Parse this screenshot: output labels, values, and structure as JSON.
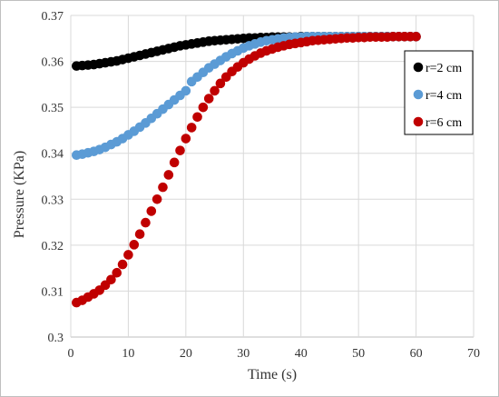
{
  "chart_data": {
    "type": "scatter",
    "xlabel": "Time (s)",
    "ylabel": "Pressure (KPa)",
    "xlim": [
      0,
      70
    ],
    "ylim": [
      0.3,
      0.37
    ],
    "x_ticks": [
      "0",
      "10",
      "20",
      "30",
      "40",
      "50",
      "60",
      "70"
    ],
    "y_ticks": [
      "0.3",
      "0.31",
      "0.32",
      "0.33",
      "0.34",
      "0.35",
      "0.36",
      "0.37"
    ],
    "grid": true,
    "legend_position": "right",
    "x": [
      1,
      2,
      3,
      4,
      5,
      6,
      7,
      8,
      9,
      10,
      11,
      12,
      13,
      14,
      15,
      16,
      17,
      18,
      19,
      20,
      21,
      22,
      23,
      24,
      25,
      26,
      27,
      28,
      29,
      30,
      31,
      32,
      33,
      34,
      35,
      36,
      37,
      38,
      39,
      40,
      41,
      42,
      43,
      44,
      45,
      46,
      47,
      48,
      49,
      50,
      51,
      52,
      53,
      54,
      55,
      56,
      57,
      58,
      59,
      60
    ],
    "series": [
      {
        "name": "r=2 cm",
        "color": "#000000",
        "values": [
          0.359,
          0.3591,
          0.3592,
          0.3593,
          0.3595,
          0.3597,
          0.3599,
          0.3601,
          0.3604,
          0.3607,
          0.361,
          0.3613,
          0.3616,
          0.3619,
          0.3622,
          0.3625,
          0.3628,
          0.3631,
          0.3634,
          0.3636,
          0.3638,
          0.364,
          0.3642,
          0.3644,
          0.3645,
          0.3646,
          0.3647,
          0.3648,
          0.3649,
          0.365,
          0.3651,
          0.3651,
          0.3652,
          0.3652,
          0.3653,
          0.3653,
          0.3653,
          0.3653,
          0.3653,
          0.3654,
          0.3654,
          0.3654,
          0.3654,
          0.3654,
          0.3654,
          0.3654,
          0.3654,
          0.3654,
          0.3654,
          0.3654,
          0.3654,
          0.3654,
          0.3654,
          0.3654,
          0.3654,
          0.3654,
          0.3654,
          0.3654,
          0.3654,
          0.3654
        ]
      },
      {
        "name": "r=4 cm",
        "color": "#5b9bd5",
        "values": [
          0.3396,
          0.3398,
          0.3401,
          0.3404,
          0.3408,
          0.3413,
          0.3419,
          0.3425,
          0.3432,
          0.344,
          0.3448,
          0.3457,
          0.3466,
          0.3476,
          0.3486,
          0.3496,
          0.3506,
          0.3516,
          0.3526,
          0.3536,
          0.3556,
          0.3566,
          0.3576,
          0.3586,
          0.3594,
          0.3602,
          0.361,
          0.3617,
          0.3623,
          0.3629,
          0.3634,
          0.3638,
          0.3642,
          0.3645,
          0.3647,
          0.3649,
          0.3651,
          0.3652,
          0.3653,
          0.3653,
          0.3654,
          0.3654,
          0.3654,
          0.3654,
          0.3654,
          0.3654,
          0.3654,
          0.3654,
          0.3654,
          0.3654,
          0.3654,
          0.3654,
          0.3654,
          0.3654,
          0.3654,
          0.3654,
          0.3654,
          0.3654,
          0.3654,
          0.3654
        ]
      },
      {
        "name": "r=6 cm",
        "color": "#c00000",
        "values": [
          0.3075,
          0.308,
          0.3087,
          0.3094,
          0.3102,
          0.3113,
          0.3125,
          0.314,
          0.3158,
          0.3179,
          0.3201,
          0.3224,
          0.3249,
          0.3274,
          0.33,
          0.3326,
          0.3353,
          0.338,
          0.3406,
          0.3432,
          0.3456,
          0.3479,
          0.35,
          0.3519,
          0.3536,
          0.3552,
          0.3566,
          0.3578,
          0.3588,
          0.3597,
          0.3605,
          0.3612,
          0.3618,
          0.3623,
          0.3627,
          0.3631,
          0.3634,
          0.3637,
          0.3639,
          0.3641,
          0.3643,
          0.3645,
          0.3646,
          0.3647,
          0.3648,
          0.3649,
          0.365,
          0.3651,
          0.3651,
          0.3652,
          0.3652,
          0.3653,
          0.3653,
          0.3653,
          0.3653,
          0.3654,
          0.3654,
          0.3654,
          0.3654,
          0.3654
        ]
      }
    ]
  }
}
